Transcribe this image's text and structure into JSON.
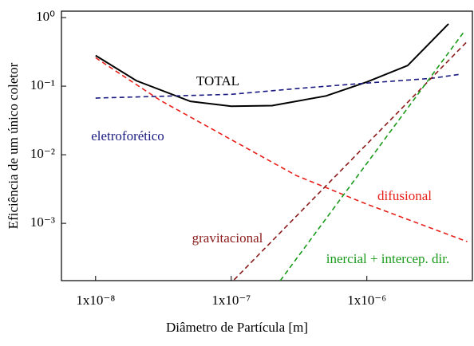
{
  "chart_data": {
    "type": "line",
    "xlabel": "Diâmetro de Partícula [m]",
    "ylabel": "Eficiência de um único coletor",
    "xscale": "log",
    "yscale": "log",
    "xlim": [
      5.6e-09,
      6e-06
    ],
    "ylim": [
      0.000146,
      1.24
    ],
    "xticks": [
      {
        "value": 1e-08,
        "label": "1x10⁻⁸"
      },
      {
        "value": 1e-07,
        "label": "1x10⁻⁷"
      },
      {
        "value": 1e-06,
        "label": "1x10⁻⁶"
      }
    ],
    "yticks": [
      {
        "value": 1,
        "label": "10⁰"
      },
      {
        "value": 0.1,
        "label": "10⁻¹"
      },
      {
        "value": 0.01,
        "label": "10⁻²"
      },
      {
        "value": 0.001,
        "label": "10⁻³"
      }
    ],
    "series": [
      {
        "name": "TOTAL",
        "color": "#000000",
        "linestyle": "solid",
        "x": [
          1e-08,
          2e-08,
          5e-08,
          1e-07,
          2e-07,
          5e-07,
          1e-06,
          2e-06,
          4e-06
        ],
        "values": [
          0.28,
          0.12,
          0.06,
          0.051,
          0.052,
          0.072,
          0.115,
          0.2,
          0.81
        ]
      },
      {
        "name": "eletroforético",
        "color": "#1a1a80",
        "linestyle": "dashed",
        "x": [
          1e-08,
          1e-07,
          3e-07,
          1e-06,
          3e-06,
          5e-06
        ],
        "values": [
          0.067,
          0.076,
          0.092,
          0.111,
          0.13,
          0.15
        ]
      },
      {
        "name": "difusional",
        "color": "#e8201a",
        "linestyle": "dashed",
        "x": [
          1e-08,
          3e-08,
          1e-07,
          3e-07,
          1e-06,
          5.5e-06
        ],
        "values": [
          0.26,
          0.062,
          0.0166,
          0.005,
          0.0019,
          0.00054
        ]
      },
      {
        "name": "gravitacional",
        "color": "#8b1a1a",
        "linestyle": "dashed",
        "x": [
          1.05e-07,
          5.5e-06
        ],
        "values": [
          0.00015,
          0.45
        ]
      },
      {
        "name": "inercial + intercep. dir.",
        "color": "#1a9a1a",
        "linestyle": "dashed",
        "x": [
          2.3e-07,
          5.2e-06
        ],
        "values": [
          0.000146,
          0.62
        ]
      }
    ]
  }
}
